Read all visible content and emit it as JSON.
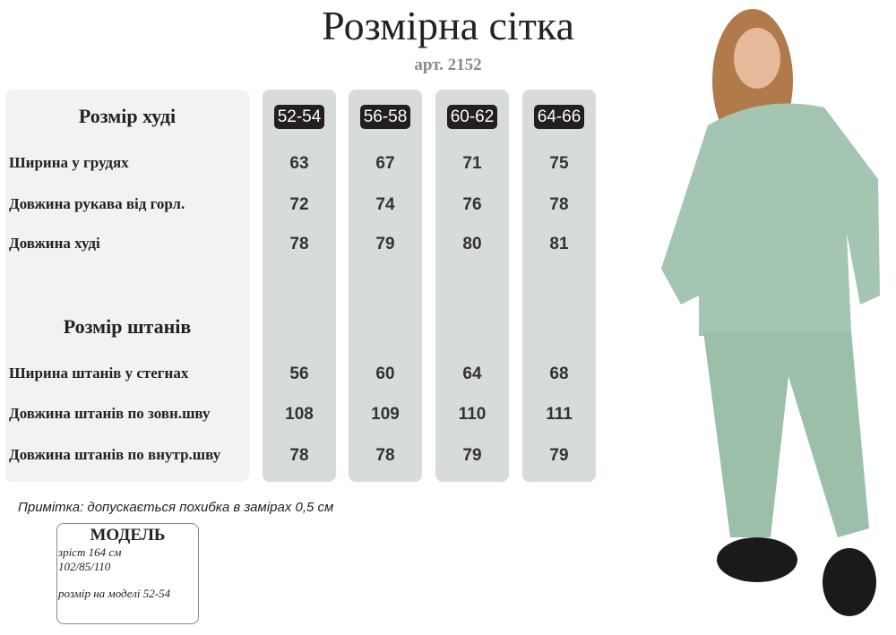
{
  "title": "Розмірна сітка",
  "article": "арт. 2152",
  "hoodie": {
    "header": "Розмір худі",
    "rows": [
      {
        "label": "Ширина у грудях",
        "values": [
          "63",
          "67",
          "71",
          "75"
        ]
      },
      {
        "label": "Довжина рукава від горл.",
        "values": [
          "72",
          "74",
          "76",
          "78"
        ]
      },
      {
        "label": "Довжина худі",
        "values": [
          "78",
          "79",
          "80",
          "81"
        ]
      }
    ]
  },
  "pants": {
    "header": "Розмір штанів",
    "rows": [
      {
        "label": "Ширина штанів у стегнах",
        "values": [
          "56",
          "60",
          "64",
          "68"
        ]
      },
      {
        "label": "Довжина штанів по зовн.шву",
        "values": [
          "108",
          "109",
          "110",
          "111"
        ]
      },
      {
        "label": "Довжина штанів по внутр.шву",
        "values": [
          "78",
          "78",
          "79",
          "79"
        ]
      }
    ]
  },
  "sizes": [
    "52-54",
    "56-58",
    "60-62",
    "64-66"
  ],
  "note": "Примітка: допускається похибка в замірах 0,5 см",
  "model": {
    "title": "МОДЕЛЬ",
    "height": "зріст 164 см",
    "measurements": "102/85/110",
    "size": "розмір на моделі 52-54"
  },
  "colors": {
    "garment": "#a3c5b1",
    "column_bg": "#d7dcdb"
  }
}
